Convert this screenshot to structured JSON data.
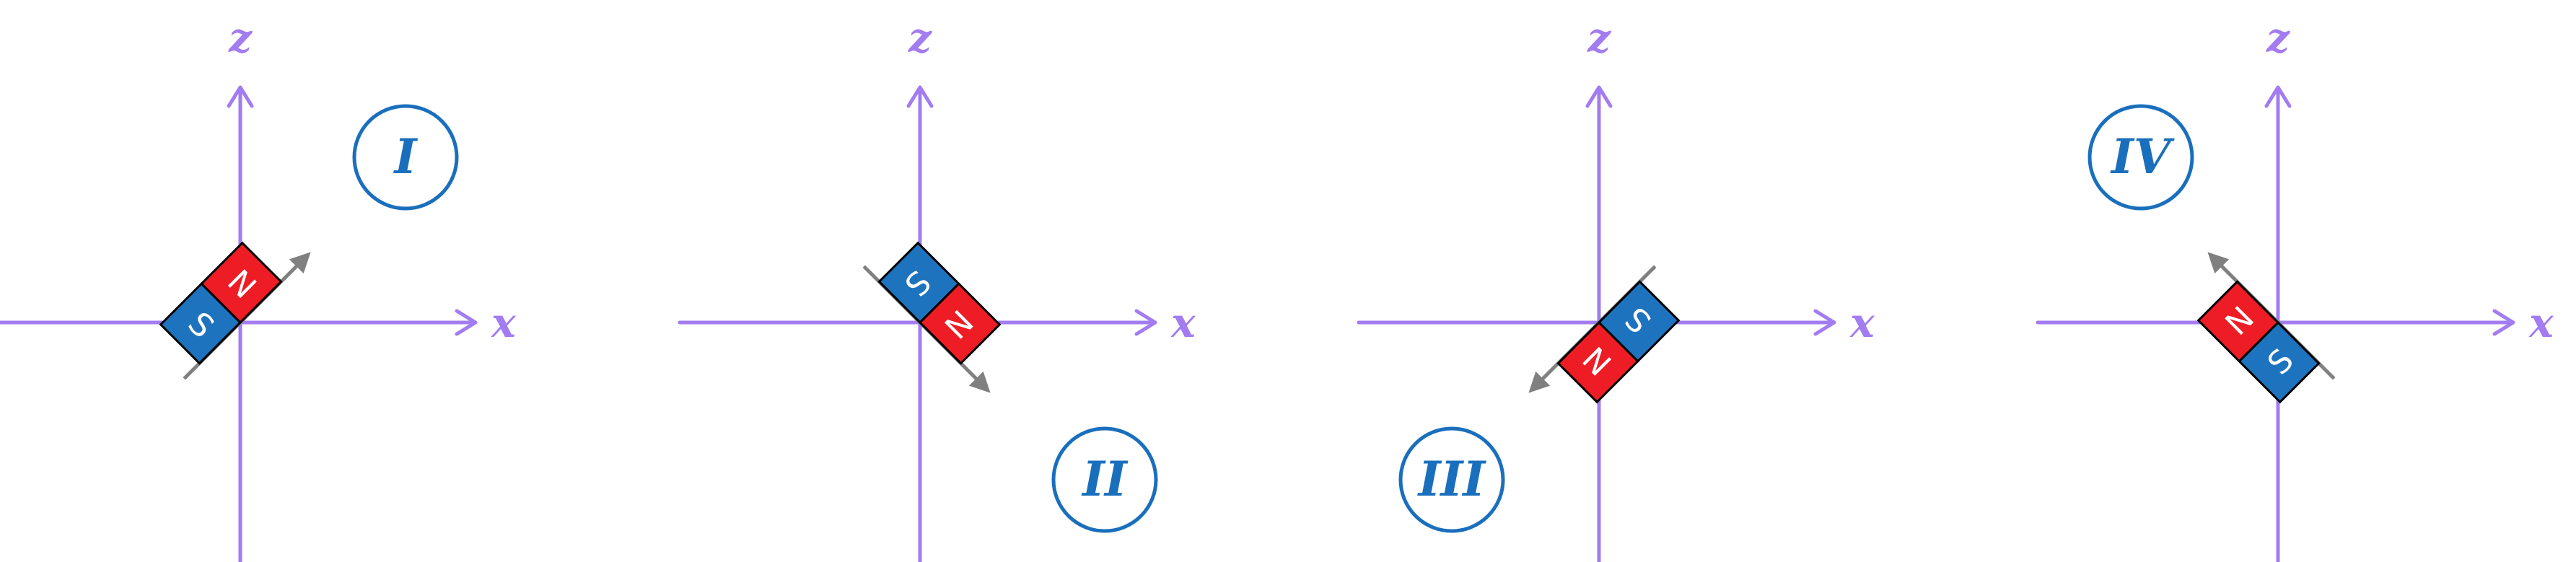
{
  "colors": {
    "axis": "#a27cf0",
    "north": "#ee1c25",
    "south": "#1e73be",
    "outline": "#000000",
    "moment_arrow": "#808080",
    "label_blue": "#1a6fbd",
    "pole_text": "#ffffff"
  },
  "axis_labels": {
    "x": "x",
    "z": "z"
  },
  "pole_labels": {
    "north": "N",
    "south": "S"
  },
  "panels": [
    {
      "id": "I",
      "label": "I",
      "north_direction": "up-right"
    },
    {
      "id": "II",
      "label": "II",
      "north_direction": "down-right"
    },
    {
      "id": "III",
      "label": "III",
      "north_direction": "down-left"
    },
    {
      "id": "IV",
      "label": "IV",
      "north_direction": "up-left"
    }
  ]
}
